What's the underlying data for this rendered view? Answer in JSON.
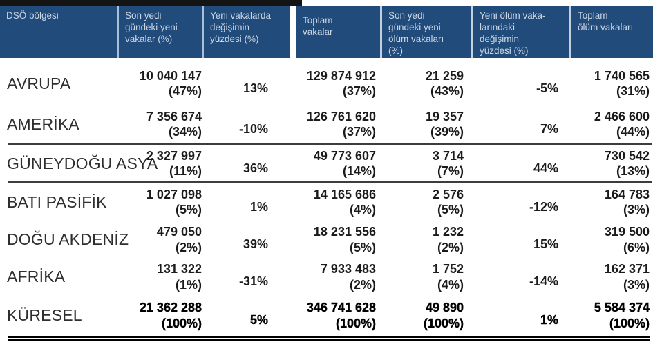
{
  "header": {
    "region": "DSÖ bölgesi",
    "new_cases": "Son yedi\ngündeki yeni\nvakalar (%)",
    "new_cases_change": "Yeni vakalarda\ndeğişimin\nyüzdesi (%)",
    "total_cases": "Toplam\nvakalar",
    "new_deaths": "Son yedi\ngündeki yeni\nölüm vakaları\n(%)",
    "new_deaths_change": "Yeni ölüm vaka-\nlarındaki\ndeğişimin\nyüzdesi (%)",
    "total_deaths": "Toplam\nölüm vakaları"
  },
  "rows": [
    {
      "region": "AVRUPA",
      "new_cases": "10 040 147\n(47%)",
      "new_cases_change": "13%",
      "total_cases": "129 874 912\n(37%)",
      "new_deaths": "21 259\n(43%)",
      "new_deaths_change": "-5%",
      "total_deaths": "1 740 565\n(31%)"
    },
    {
      "region": "AMERİKA",
      "new_cases": "7 356 674\n(34%)",
      "new_cases_change": "-10%",
      "total_cases": "126 761 620\n(37%)",
      "new_deaths": "19 357\n(39%)",
      "new_deaths_change": "7%",
      "total_deaths": "2 466 600\n(44%)"
    },
    {
      "region": "GÜNEYDOĞU ASYA",
      "new_cases": "2 327 997\n(11%)",
      "new_cases_change": "36%",
      "total_cases": "49 773 607\n(14%)",
      "new_deaths": "3 714\n(7%)",
      "new_deaths_change": "44%",
      "total_deaths": "730 542\n(13%)"
    },
    {
      "region": "BATI PASİFİK",
      "new_cases": "1 027 098\n(5%)",
      "new_cases_change": "1%",
      "total_cases": "14 165 686\n(4%)",
      "new_deaths": "2 576\n(5%)",
      "new_deaths_change": "-12%",
      "total_deaths": "164 783\n(3%)"
    },
    {
      "region": "DOĞU AKDENİZ",
      "new_cases": "479 050\n(2%)",
      "new_cases_change": "39%",
      "total_cases": "18 231 556\n(5%)",
      "new_deaths": "1 232\n(2%)",
      "new_deaths_change": "15%",
      "total_deaths": "319 500\n(6%)"
    },
    {
      "region": "AFRİKA",
      "new_cases": "131 322\n(1%)",
      "new_cases_change": "-31%",
      "total_cases": "7 933 483\n(2%)",
      "new_deaths": "1 752\n(4%)",
      "new_deaths_change": "-14%",
      "total_deaths": "162 371\n(3%)"
    },
    {
      "region": "KÜRESEL",
      "new_cases": "21 362 288\n(100%)",
      "new_cases_change": "5%",
      "total_cases": "346 741 628\n(100%)",
      "new_deaths": "49 890\n(100%)",
      "new_deaths_change": "1%",
      "total_deaths": "5 584 374\n(100%)"
    }
  ],
  "colors": {
    "header_bg": "#204b7b",
    "header_text": "#ccd6e3",
    "header_separator": "#a9bed8",
    "divider": "#3d3d3d",
    "bottom_rule": "#000000"
  }
}
